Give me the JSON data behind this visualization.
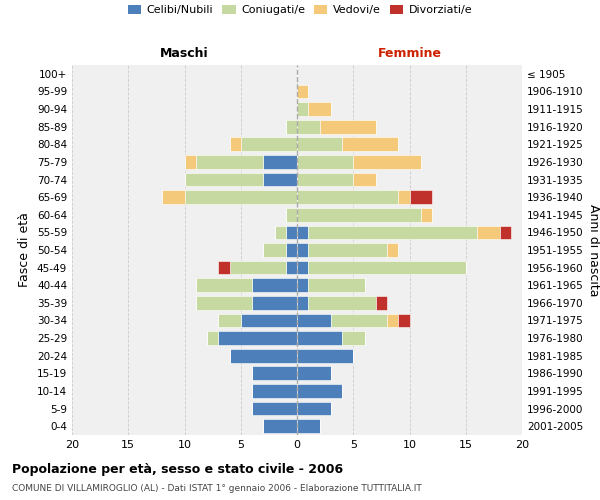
{
  "age_groups": [
    "0-4",
    "5-9",
    "10-14",
    "15-19",
    "20-24",
    "25-29",
    "30-34",
    "35-39",
    "40-44",
    "45-49",
    "50-54",
    "55-59",
    "60-64",
    "65-69",
    "70-74",
    "75-79",
    "80-84",
    "85-89",
    "90-94",
    "95-99",
    "100+"
  ],
  "birth_years": [
    "2001-2005",
    "1996-2000",
    "1991-1995",
    "1986-1990",
    "1981-1985",
    "1976-1980",
    "1971-1975",
    "1966-1970",
    "1961-1965",
    "1956-1960",
    "1951-1955",
    "1946-1950",
    "1941-1945",
    "1936-1940",
    "1931-1935",
    "1926-1930",
    "1921-1925",
    "1916-1920",
    "1911-1915",
    "1906-1910",
    "≤ 1905"
  ],
  "colors": {
    "celibi": "#4d7fba",
    "coniugati": "#c5d9a0",
    "vedovi": "#f5c97a",
    "divorziati": "#c0312b"
  },
  "maschi": {
    "celibi": [
      3,
      4,
      4,
      4,
      6,
      7,
      5,
      4,
      4,
      1,
      1,
      1,
      0,
      0,
      3,
      3,
      0,
      0,
      0,
      0,
      0
    ],
    "coniugati": [
      0,
      0,
      0,
      0,
      0,
      1,
      2,
      5,
      5,
      5,
      2,
      1,
      1,
      10,
      7,
      6,
      5,
      1,
      0,
      0,
      0
    ],
    "vedovi": [
      0,
      0,
      0,
      0,
      0,
      0,
      0,
      0,
      0,
      0,
      0,
      0,
      0,
      2,
      0,
      1,
      1,
      0,
      0,
      0,
      0
    ],
    "divorziati": [
      0,
      0,
      0,
      0,
      0,
      0,
      0,
      0,
      0,
      1,
      0,
      0,
      0,
      0,
      0,
      0,
      0,
      0,
      0,
      0,
      0
    ]
  },
  "femmine": {
    "celibi": [
      2,
      3,
      4,
      3,
      5,
      4,
      3,
      1,
      1,
      1,
      1,
      1,
      0,
      0,
      0,
      0,
      0,
      0,
      0,
      0,
      0
    ],
    "coniugati": [
      0,
      0,
      0,
      0,
      0,
      2,
      5,
      6,
      5,
      14,
      7,
      15,
      11,
      9,
      5,
      5,
      4,
      2,
      1,
      0,
      0
    ],
    "vedovi": [
      0,
      0,
      0,
      0,
      0,
      0,
      1,
      0,
      0,
      0,
      1,
      2,
      1,
      1,
      2,
      6,
      5,
      5,
      2,
      1,
      0
    ],
    "divorziati": [
      0,
      0,
      0,
      0,
      0,
      0,
      1,
      1,
      0,
      0,
      0,
      1,
      0,
      2,
      0,
      0,
      0,
      0,
      0,
      0,
      0
    ]
  },
  "xlim": 20,
  "title": "Popolazione per età, sesso e stato civile - 2006",
  "subtitle": "COMUNE DI VILLAMIROGLIO (AL) - Dati ISTAT 1° gennaio 2006 - Elaborazione TUTTITALIA.IT",
  "ylabel": "Fasce di età",
  "ylabel2": "Anni di nascita",
  "xlabel_left": "Maschi",
  "xlabel_right": "Femmine",
  "legend_labels": [
    "Celibi/Nubili",
    "Coniugati/e",
    "Vedovi/e",
    "Divorziati/e"
  ],
  "bg_color": "#f0f0f0"
}
